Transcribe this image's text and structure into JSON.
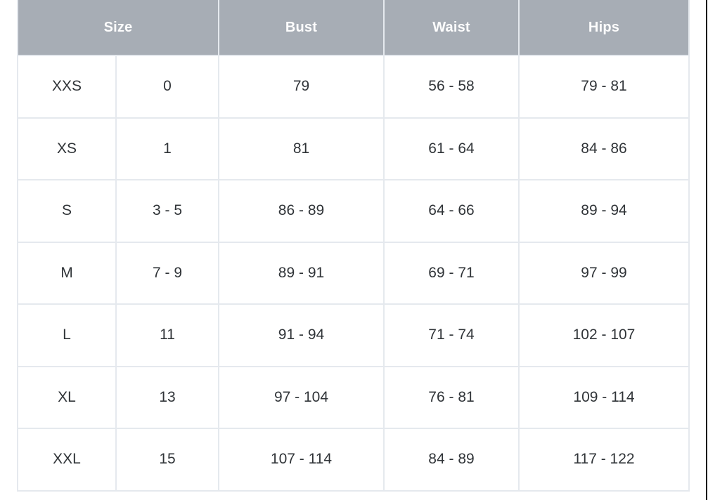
{
  "table": {
    "headers": [
      {
        "label": "Size",
        "span": 2
      },
      {
        "label": "Bust",
        "span": 1
      },
      {
        "label": "Waist",
        "span": 1
      },
      {
        "label": "Hips",
        "span": 1
      }
    ],
    "rows": [
      {
        "size_alpha": "XXS",
        "size_num": "0",
        "bust": "79",
        "waist": "56 - 58",
        "hips": "79 - 81"
      },
      {
        "size_alpha": "XS",
        "size_num": "1",
        "bust": "81",
        "waist": "61 - 64",
        "hips": "84 - 86"
      },
      {
        "size_alpha": "S",
        "size_num": "3 - 5",
        "bust": "86 - 89",
        "waist": "64 - 66",
        "hips": "89 - 94"
      },
      {
        "size_alpha": "M",
        "size_num": "7 - 9",
        "bust": "89 - 91",
        "waist": "69 - 71",
        "hips": "97 - 99"
      },
      {
        "size_alpha": "L",
        "size_num": "11",
        "bust": "91 - 94",
        "waist": "71 - 74",
        "hips": "102 - 107"
      },
      {
        "size_alpha": "XL",
        "size_num": "13",
        "bust": "97 - 104",
        "waist": "76 - 81",
        "hips": "109 - 114"
      },
      {
        "size_alpha": "XXL",
        "size_num": "15",
        "bust": "107 - 114",
        "waist": "84 - 89",
        "hips": "117 - 122"
      }
    ]
  },
  "colors": {
    "header_bg": "#A7ADB5",
    "header_text": "#FDFDFD",
    "body_text": "#303438",
    "grid_line": "#E5E9EE",
    "edge_line": "#151515"
  }
}
